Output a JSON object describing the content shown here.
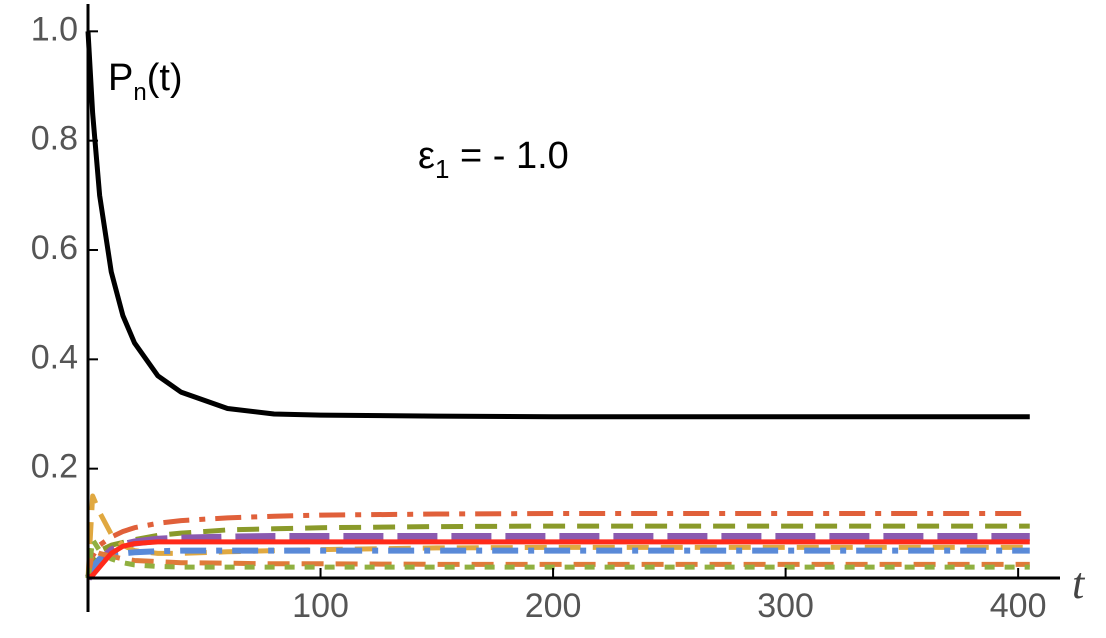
{
  "chart_data": {
    "type": "line",
    "y_label_parts": [
      "P",
      "n",
      "(t)"
    ],
    "x_label": "t",
    "annotation_parts": [
      "ε",
      "1",
      " = - 1.0"
    ],
    "x": [
      0,
      2,
      5,
      10,
      15,
      20,
      30,
      40,
      60,
      80,
      100,
      150,
      200,
      300,
      405
    ],
    "series": [
      {
        "color": "#000000",
        "dash": "solid",
        "width": 5,
        "values": [
          1.0,
          0.85,
          0.7,
          0.56,
          0.48,
          0.43,
          0.37,
          0.34,
          0.31,
          0.3,
          0.298,
          0.296,
          0.295,
          0.295,
          0.295
        ]
      },
      {
        "color": "#e0603a",
        "dash": "dashdot",
        "width": 5,
        "values": [
          0,
          0.04,
          0.06,
          0.075,
          0.085,
          0.092,
          0.1,
          0.105,
          0.11,
          0.113,
          0.115,
          0.117,
          0.118,
          0.118,
          0.118
        ]
      },
      {
        "color": "#8a9a2a",
        "dash": "dashed",
        "width": 5,
        "values": [
          0,
          0.03,
          0.05,
          0.06,
          0.065,
          0.07,
          0.078,
          0.082,
          0.088,
          0.09,
          0.092,
          0.094,
          0.095,
          0.095,
          0.095
        ]
      },
      {
        "color": "#8a5ab0",
        "dash": "longdash",
        "width": 8,
        "values": [
          0,
          0.01,
          0.03,
          0.05,
          0.06,
          0.065,
          0.07,
          0.072,
          0.074,
          0.075,
          0.075,
          0.075,
          0.075,
          0.075,
          0.075
        ]
      },
      {
        "color": "#e0a840",
        "dash": "dashed",
        "width": 5,
        "values": [
          0,
          0.15,
          0.12,
          0.08,
          0.06,
          0.05,
          0.045,
          0.045,
          0.048,
          0.05,
          0.052,
          0.055,
          0.056,
          0.056,
          0.056
        ]
      },
      {
        "color": "#5a8ad8",
        "dash": "dashdot",
        "width": 6,
        "values": [
          0,
          0.02,
          0.035,
          0.042,
          0.045,
          0.047,
          0.049,
          0.05,
          0.05,
          0.05,
          0.05,
          0.05,
          0.05,
          0.05,
          0.05
        ]
      },
      {
        "color": "#e07a3a",
        "dash": "dashed",
        "width": 5,
        "values": [
          0,
          0.05,
          0.045,
          0.04,
          0.035,
          0.032,
          0.03,
          0.028,
          0.027,
          0.026,
          0.026,
          0.025,
          0.025,
          0.025,
          0.025
        ]
      },
      {
        "color": "#90b040",
        "dash": "dotted",
        "width": 5,
        "values": [
          0,
          0.07,
          0.05,
          0.035,
          0.028,
          0.024,
          0.021,
          0.02,
          0.02,
          0.02,
          0.02,
          0.02,
          0.02,
          0.02,
          0.02
        ]
      },
      {
        "color": "#ff2a1a",
        "dash": "solid",
        "width": 5,
        "values": [
          0,
          0.005,
          0.02,
          0.045,
          0.058,
          0.063,
          0.066,
          0.066,
          0.066,
          0.066,
          0.066,
          0.066,
          0.066,
          0.066,
          0.066
        ]
      }
    ],
    "xlim": [
      0,
      418
    ],
    "ylim": [
      0,
      1.05
    ],
    "xticks": [
      100,
      200,
      300,
      400
    ],
    "yticks": [
      0.2,
      0.4,
      0.6,
      0.8,
      {
        "value": 1,
        "label": "1.0"
      }
    ]
  }
}
